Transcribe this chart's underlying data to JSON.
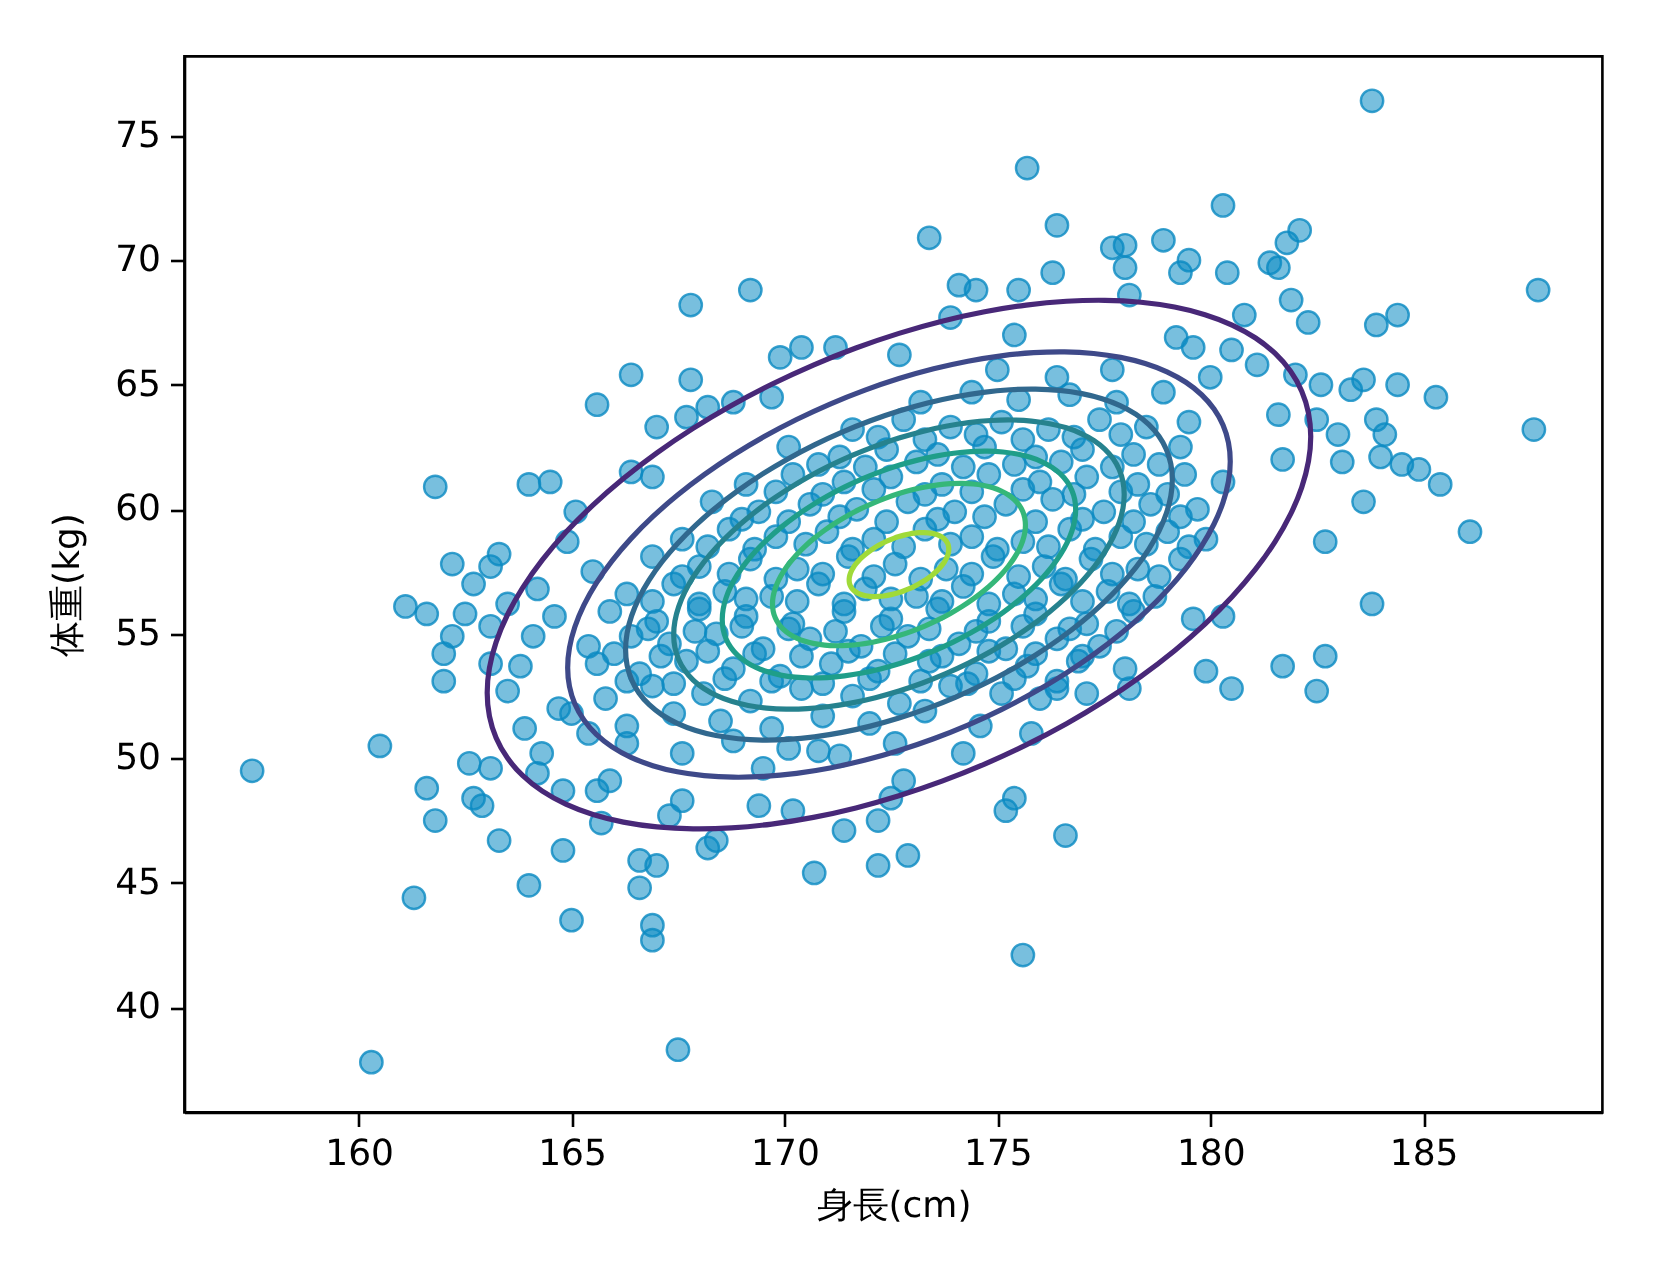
{
  "chart_data": {
    "type": "scatter",
    "xlabel": "身長(cm)",
    "ylabel": "体重(kg)",
    "xlim": [
      155.9,
      189.2
    ],
    "ylim": [
      35.8,
      78.2
    ],
    "xticks": [
      160,
      165,
      170,
      175,
      180,
      185
    ],
    "yticks": [
      40,
      45,
      50,
      55,
      60,
      65,
      70,
      75
    ],
    "series": [
      {
        "color": "#0a8ac2",
        "marker": "circle",
        "x": [
          169.2,
          167.8,
          171.2,
          170.4,
          169.9,
          166.4,
          167.8,
          165.6,
          168.2,
          168.8,
          169.7,
          167.0,
          167.7,
          161.8,
          164.0,
          164.5,
          165.1,
          166.4,
          166.9,
          162.2,
          162.7,
          163.1,
          163.3,
          164.9,
          165.5,
          161.1,
          161.6,
          162.5,
          163.5,
          164.2,
          183.8,
          175.7,
          180.3,
          173.4,
          176.4,
          177.7,
          178.0,
          178.9,
          179.5,
          179.3,
          180.4,
          181.4,
          181.8,
          182.1,
          181.6,
          178.0,
          187.7,
          174.1,
          174.5,
          175.5,
          176.3,
          178.1,
          181.9,
          182.3,
          183.9,
          184.4,
          180.8,
          179.2,
          179.6,
          172.7,
          173.9,
          175.4,
          182.0,
          182.6,
          183.3,
          183.6,
          184.4,
          185.3,
          187.6,
          182.5,
          183.0,
          183.9,
          184.1,
          183.1,
          184.0,
          184.5,
          184.9,
          185.4,
          183.6,
          186.1,
          182.7,
          183.8,
          181.7,
          181.6,
          181.1,
          180.5,
          180.0,
          157.5,
          160.5,
          160.3,
          167.5,
          161.3,
          164.0,
          164.8,
          165.0,
          166.6,
          166.9,
          166.9,
          166.6,
          167.0,
          161.6,
          161.8,
          163.3,
          162.6,
          163.1,
          162.7,
          162.9,
          163.9,
          164.3,
          164.2,
          164.8,
          165.6,
          165.9,
          165.7,
          168.2,
          168.4,
          170.7,
          172.2,
          162.0,
          162.0,
          162.2,
          163.1,
          163.1,
          163.5,
          164.1,
          164.6,
          163.8,
          164.7,
          165.0,
          165.4,
          166.3,
          167.3,
          167.6,
          169.4,
          170.2,
          171.4,
          169.5,
          170.8,
          172.2,
          179.9,
          180.5,
          181.7,
          182.7,
          182.5,
          179.6,
          180.3,
          175.4,
          175.2,
          176.6,
          172.9,
          175.6,
          175.8,
          174.2,
          177.1,
          178.0,
          178.1,
          176.4,
          172.8,
          172.5,
          167.6,
          168.8,
          170.1,
          171.3,
          172.6,
          166.3,
          167.4,
          168.5,
          169.7,
          170.9,
          172.0,
          173.3,
          174.6,
          165.8,
          166.9,
          168.1,
          169.2,
          170.4,
          171.6,
          172.7,
          173.9,
          175.1,
          176.0,
          165.6,
          166.6,
          167.7,
          168.8,
          169.9,
          171.1,
          172.2,
          173.4,
          174.5,
          175.7,
          176.9,
          165.4,
          166.4,
          167.3,
          168.4,
          169.5,
          170.6,
          171.8,
          172.9,
          174.1,
          175.2,
          176.4,
          177.4,
          165.9,
          167.0,
          168.0,
          169.1,
          170.2,
          171.4,
          172.5,
          173.6,
          174.8,
          175.9,
          177.1,
          178.2,
          166.3,
          167.4,
          168.6,
          169.7,
          170.8,
          171.9,
          173.1,
          174.2,
          175.4,
          176.5,
          177.6,
          178.7,
          166.9,
          168.0,
          169.2,
          170.3,
          171.5,
          172.6,
          173.8,
          174.9,
          176.1,
          177.2,
          178.3,
          179.3,
          167.6,
          168.7,
          169.8,
          171.0,
          172.1,
          173.3,
          174.4,
          175.6,
          176.7,
          177.9,
          179.0,
          179.9,
          168.3,
          169.4,
          170.6,
          171.7,
          172.9,
          174.0,
          175.2,
          176.3,
          177.5,
          178.6,
          179.7,
          169.1,
          170.2,
          171.4,
          172.5,
          173.7,
          174.8,
          176.0,
          177.1,
          178.3,
          179.4,
          180.3,
          170.1,
          171.3,
          172.4,
          173.6,
          174.7,
          175.9,
          177.0,
          178.2,
          179.3,
          171.6,
          172.8,
          173.9,
          175.1,
          176.2,
          177.4,
          178.5,
          179.5,
          173.2,
          174.4,
          175.5,
          176.7,
          177.8,
          178.9,
          175.0,
          176.4,
          177.7,
          166.3,
          167.4,
          168.6,
          169.7,
          170.9,
          172.0,
          173.2,
          174.3,
          175.4,
          176.4,
          166.0,
          167.1,
          168.2,
          169.3,
          170.4,
          171.5,
          172.6,
          173.7,
          174.8,
          175.9,
          177.0,
          166.8,
          167.9,
          169.0,
          170.1,
          171.2,
          172.3,
          173.4,
          174.5,
          175.6,
          176.7,
          177.8,
          166.9,
          168.0,
          169.1,
          170.3,
          171.4,
          172.5,
          173.7,
          174.8,
          175.9,
          177.0,
          178.1,
          167.6,
          168.7,
          169.8,
          170.9,
          172.1,
          173.2,
          174.4,
          175.5,
          176.6,
          177.7,
          178.8,
          168.2,
          169.3,
          170.5,
          171.6,
          172.8,
          173.9,
          175.0,
          176.2,
          177.3,
          178.5,
          179.5,
          169.0,
          170.1,
          171.3,
          172.4,
          173.6,
          174.7,
          175.9,
          177.0,
          178.2,
          179.3,
          169.8,
          170.9,
          172.1,
          173.3,
          174.4,
          175.6,
          176.8,
          177.9,
          179.0,
          170.8,
          171.9,
          173.1,
          174.2,
          175.4,
          176.5,
          177.7,
          178.8,
          172.2,
          173.3,
          174.5,
          175.6,
          176.8,
          177.9
        ],
        "values": [
          68.8,
          68.2,
          66.5,
          66.5,
          66.1,
          65.4,
          65.2,
          64.2,
          64.1,
          64.3,
          64.5,
          63.3,
          63.7,
          60.9,
          61.0,
          61.1,
          59.9,
          61.5,
          61.3,
          57.8,
          57.0,
          57.7,
          58.2,
          58.7,
          57.5,
          56.1,
          55.8,
          55.8,
          56.2,
          56.8,
          76.4,
          73.7,
          72.2,
          70.9,
          71.4,
          70.5,
          70.6,
          70.8,
          70.0,
          69.5,
          69.5,
          69.9,
          70.7,
          71.2,
          69.7,
          69.7,
          68.8,
          69.0,
          68.8,
          68.8,
          69.5,
          68.6,
          68.4,
          67.5,
          67.4,
          67.8,
          67.8,
          66.9,
          66.5,
          66.2,
          67.7,
          67.0,
          65.4,
          65.0,
          64.8,
          65.2,
          65.0,
          64.5,
          63.2,
          63.6,
          63.0,
          63.6,
          63.0,
          61.9,
          62.1,
          61.8,
          61.6,
          61.0,
          60.3,
          59.1,
          58.7,
          56.2,
          62.0,
          63.8,
          65.8,
          66.4,
          65.3,
          49.5,
          50.5,
          37.8,
          38.3,
          44.4,
          44.9,
          46.3,
          43.5,
          44.8,
          43.3,
          42.7,
          45.9,
          45.7,
          48.8,
          47.5,
          46.7,
          49.8,
          49.6,
          48.4,
          48.1,
          51.2,
          50.2,
          49.4,
          48.7,
          48.7,
          49.1,
          47.4,
          46.4,
          46.7,
          45.4,
          45.7,
          54.2,
          53.1,
          54.9,
          55.3,
          53.8,
          52.7,
          54.9,
          55.7,
          53.7,
          52.0,
          51.8,
          51.0,
          50.6,
          47.7,
          48.3,
          48.1,
          47.9,
          47.1,
          49.6,
          50.3,
          47.5,
          53.5,
          52.8,
          53.7,
          54.1,
          52.7,
          55.6,
          55.7,
          48.4,
          47.9,
          46.9,
          46.1,
          42.1,
          51.0,
          50.2,
          52.6,
          53.6,
          52.8,
          52.8,
          49.1,
          48.4,
          50.2,
          50.7,
          50.4,
          50.1,
          50.6,
          51.3,
          51.8,
          51.5,
          51.2,
          51.7,
          51.4,
          51.9,
          51.3,
          52.4,
          52.9,
          52.6,
          52.3,
          52.8,
          52.5,
          52.2,
          52.9,
          52.6,
          52.4,
          53.8,
          53.4,
          53.9,
          53.6,
          53.3,
          53.8,
          53.5,
          53.9,
          53.4,
          53.7,
          53.9,
          54.5,
          54.9,
          54.6,
          55.0,
          54.4,
          54.8,
          54.5,
          54.9,
          54.6,
          54.4,
          54.8,
          54.5,
          55.9,
          55.5,
          56.0,
          55.7,
          55.4,
          55.9,
          55.6,
          56.0,
          55.5,
          55.8,
          55.4,
          55.9,
          56.6,
          57.0,
          56.7,
          56.5,
          57.0,
          56.8,
          56.5,
          56.9,
          56.6,
          57.0,
          56.7,
          56.5,
          58.1,
          57.7,
          58.0,
          57.6,
          58.1,
          57.8,
          57.6,
          58.1,
          57.7,
          58.0,
          57.6,
          58.0,
          58.8,
          59.2,
          58.9,
          59.1,
          58.8,
          59.2,
          58.9,
          58.7,
          59.2,
          58.9,
          59.1,
          58.8,
          60.3,
          59.9,
          60.2,
          60.0,
          60.3,
          59.9,
          60.2,
          60.4,
          59.9,
          60.2,
          60.0,
          61.0,
          61.4,
          61.1,
          61.3,
          61.0,
          61.4,
          61.1,
          61.3,
          61.0,
          61.4,
          61.1,
          62.5,
          62.1,
          62.4,
          62.2,
          62.5,
          62.1,
          62.4,
          62.2,
          62.5,
          63.2,
          63.6,
          63.3,
          63.5,
          63.2,
          63.6,
          63.3,
          63.5,
          64.3,
          64.7,
          64.4,
          64.6,
          64.3,
          64.7,
          65.6,
          65.3,
          65.6,
          53.1,
          53.0,
          53.2,
          53.1,
          53.0,
          53.2,
          53.1,
          53.0,
          53.2,
          53.1,
          54.2,
          54.1,
          54.3,
          54.2,
          54.1,
          54.3,
          54.2,
          54.1,
          54.3,
          54.2,
          54.1,
          55.2,
          55.1,
          55.3,
          55.2,
          55.1,
          55.3,
          55.2,
          55.1,
          55.3,
          55.2,
          55.1,
          56.3,
          56.2,
          56.4,
          56.3,
          56.2,
          56.4,
          56.3,
          56.2,
          56.4,
          56.3,
          56.2,
          57.3,
          57.4,
          57.2,
          57.4,
          57.3,
          57.2,
          57.4,
          57.3,
          57.2,
          57.4,
          57.3,
          58.5,
          58.4,
          58.6,
          58.4,
          58.5,
          58.6,
          58.4,
          58.5,
          58.4,
          58.6,
          58.5,
          59.6,
          59.5,
          59.7,
          59.5,
          59.6,
          59.7,
          59.5,
          59.6,
          59.5,
          59.7,
          60.7,
          60.6,
          60.8,
          60.6,
          60.7,
          60.8,
          60.6,
          60.7,
          60.6,
          61.8,
          61.7,
          61.9,
          61.7,
          61.8,
          61.9,
          61.7,
          61.8,
          62.9,
          62.8,
          63.0,
          62.8,
          62.9,
          63.0
        ]
      }
    ]
  }
}
